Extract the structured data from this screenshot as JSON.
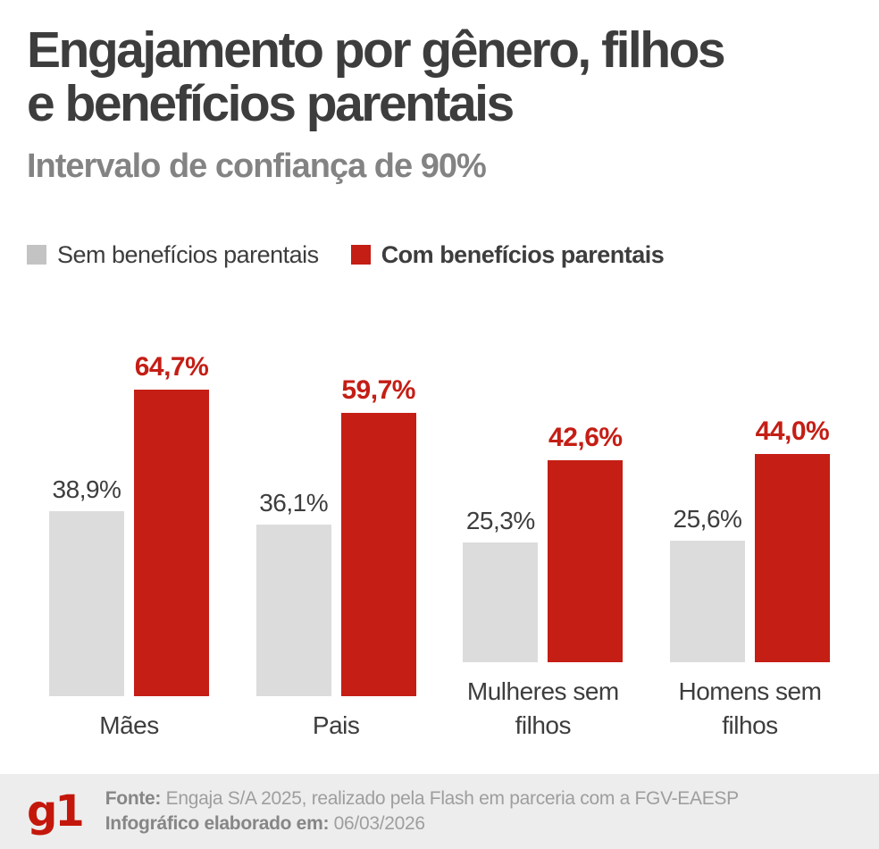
{
  "header": {
    "title_line1": "Engajamento por gênero, filhos",
    "title_line2": "e benefícios parentais",
    "subtitle": "Intervalo de confiança de 90%"
  },
  "legend": {
    "items": [
      {
        "label": "Sem benefícios parentais",
        "color": "#c3c3c3",
        "bold": false
      },
      {
        "label": "Com benefícios parentais",
        "color": "#c41e15",
        "bold": true
      }
    ]
  },
  "chart_data": {
    "type": "bar",
    "title": "Engajamento por gênero, filhos e benefícios parentais",
    "subtitle": "Intervalo de confiança de 90%",
    "categories": [
      "Mães",
      "Pais",
      "Mulheres sem filhos",
      "Homens sem filhos"
    ],
    "series": [
      {
        "name": "Sem benefícios parentais",
        "color": "#dcdcdc",
        "label_color": "#3d3d3d",
        "values": [
          38.9,
          36.1,
          25.3,
          25.6
        ],
        "labels": [
          "38,9%",
          "36,1%",
          "25,3%",
          "25,6%"
        ]
      },
      {
        "name": "Com benefícios parentais",
        "color": "#c41e15",
        "label_color": "#c41e15",
        "values": [
          64.7,
          59.7,
          42.6,
          44.0
        ],
        "labels": [
          "64,7%",
          "59,7%",
          "42,6%",
          "44,0%"
        ]
      }
    ],
    "unit": "%",
    "ylim": [
      0,
      70
    ],
    "grid": false,
    "axes_shown": false,
    "legend_position": "top"
  },
  "footer": {
    "logo_text": "g1",
    "source_label": "Fonte:",
    "source_text": " Engaja S/A 2025, realizado pela Flash em parceria com a FGV-EAESP",
    "date_label": "Infográfico elaborado em:",
    "date_text": " 06/03/2026"
  },
  "colors": {
    "accent_red": "#c41e15",
    "logo_red": "#c4170c",
    "bar_gray": "#dcdcdc",
    "legend_gray": "#c3c3c3",
    "title_gray": "#3d3d3d",
    "subtitle_gray": "#838383",
    "footer_bg": "#ededed",
    "footer_text": "#9e9e9e"
  }
}
